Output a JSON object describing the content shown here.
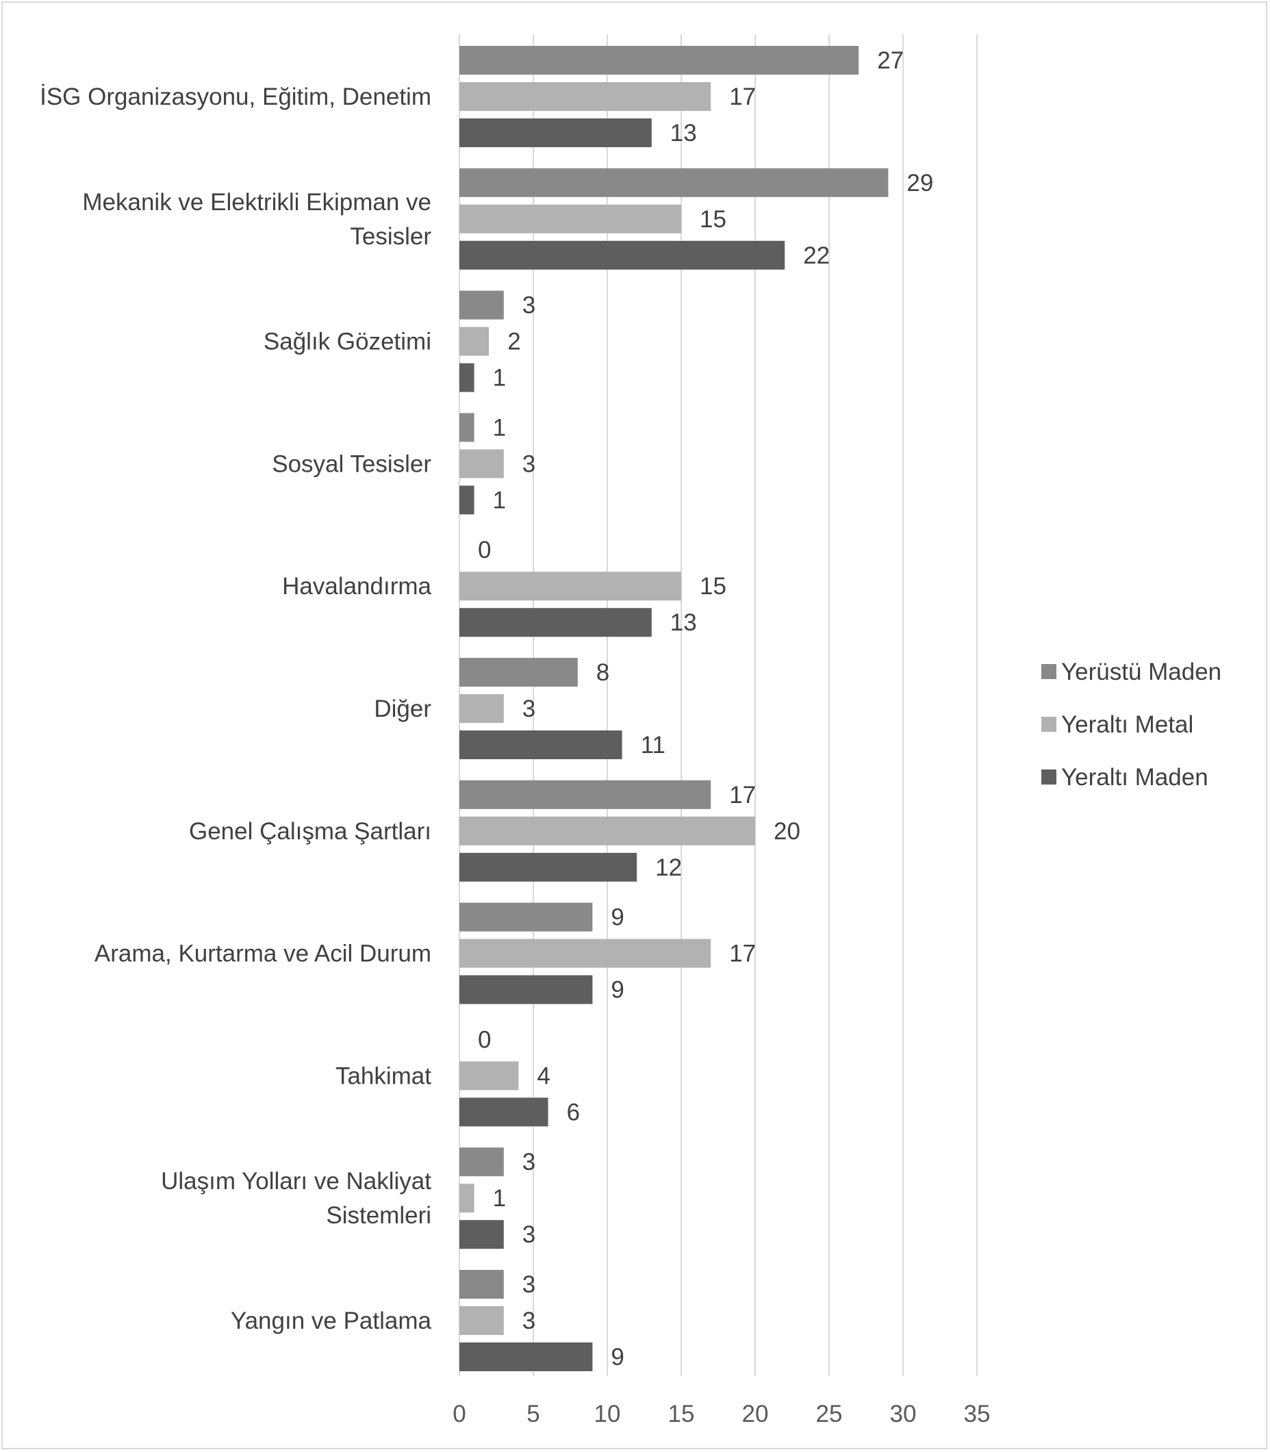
{
  "chart_data": {
    "type": "bar",
    "orientation": "horizontal",
    "categories": [
      "İSG Organizasyonu, Eğitim, Denetim",
      "Mekanik ve Elektrikli Ekipman ve Tesisler",
      "Sağlık Gözetimi",
      "Sosyal Tesisler",
      "Havalandırma",
      "Diğer",
      "Genel Çalışma Şartları",
      "Arama, Kurtarma ve Acil Durum",
      "Tahkimat",
      "Ulaşım Yolları ve Nakliyat Sistemleri",
      "Yangın ve Patlama"
    ],
    "series": [
      {
        "name": "Yerüstü Maden",
        "color": "#898989",
        "values": [
          27,
          29,
          3,
          1,
          0,
          8,
          17,
          9,
          0,
          3,
          3
        ]
      },
      {
        "name": "Yeraltı Metal",
        "color": "#b2b2b2",
        "values": [
          17,
          15,
          2,
          3,
          15,
          3,
          20,
          17,
          4,
          1,
          3
        ]
      },
      {
        "name": "Yeraltı Maden",
        "color": "#5e5e5e",
        "values": [
          13,
          22,
          1,
          1,
          13,
          11,
          12,
          9,
          6,
          3,
          9
        ]
      }
    ],
    "xlim": [
      0,
      35
    ],
    "xticks": [
      0,
      5,
      10,
      15,
      20,
      25,
      30,
      35
    ],
    "grid": true,
    "legend_position": "right",
    "data_labels": true,
    "title": "",
    "xlabel": "",
    "ylabel": ""
  }
}
